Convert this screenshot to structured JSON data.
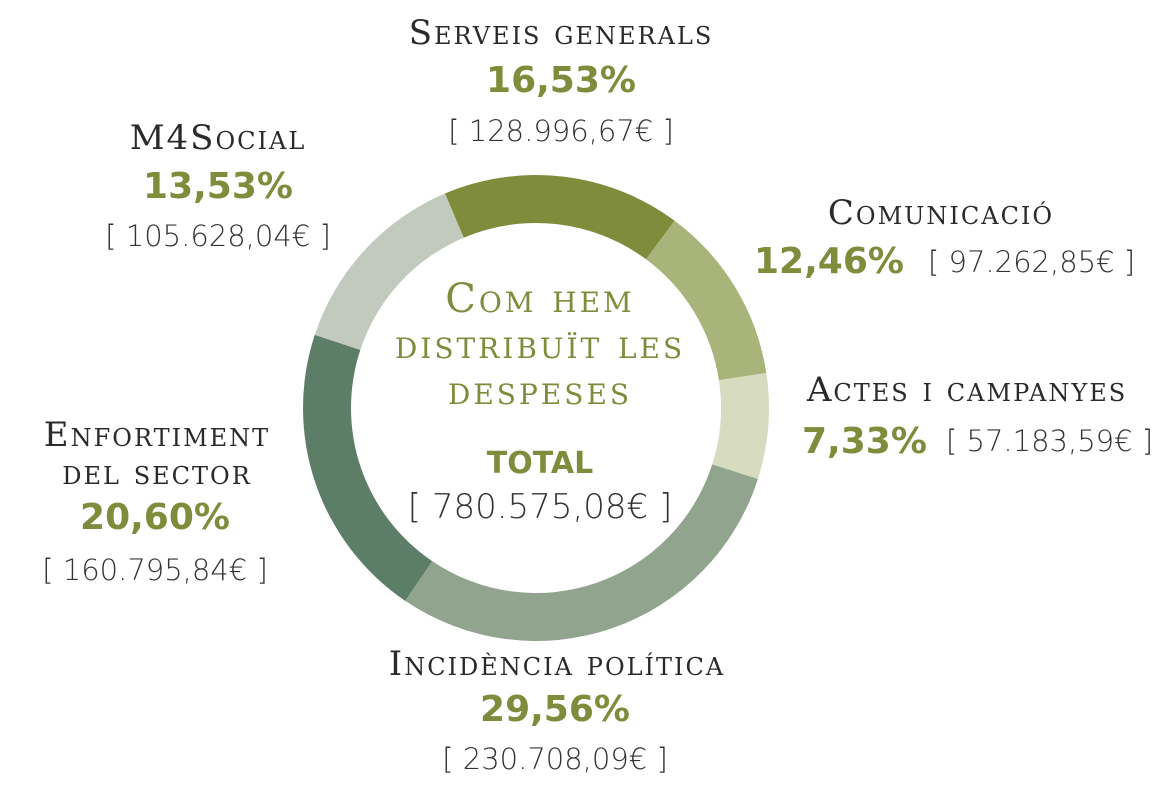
{
  "chart_data": {
    "type": "pie",
    "title": "Com hem distribuït les despeses",
    "total_label": "TOTAL",
    "total_amount": "[ 780.575,08€ ]",
    "slices": [
      {
        "name": "Serveis generals",
        "percent": 16.53,
        "percent_label": "16,53%",
        "amount": "[ 128.996,67€ ]",
        "color": "#7f8c3c"
      },
      {
        "name": "Comunicació",
        "percent": 12.46,
        "percent_label": "12,46%",
        "amount": "[ 97.262,85€ ]",
        "color": "#a9b47a"
      },
      {
        "name": "Actes i campanyes",
        "percent": 7.33,
        "percent_label": "7,33%",
        "amount": "[ 57.183,59€ ]",
        "color": "#d7dcc0"
      },
      {
        "name": "Incidència política",
        "percent": 29.56,
        "percent_label": "29,56%",
        "amount": "[ 230.708,09€ ]",
        "color": "#90a48e"
      },
      {
        "name": "Enfortiment del sector",
        "percent": 20.6,
        "percent_label": "20,60%",
        "amount": "[ 160.795,84€ ]",
        "color": "#5d7e66"
      },
      {
        "name": "M4Social",
        "percent": 13.53,
        "percent_label": "13,53%",
        "amount": "[ 105.628,04€ ]",
        "color": "#c2c9bd"
      }
    ]
  }
}
